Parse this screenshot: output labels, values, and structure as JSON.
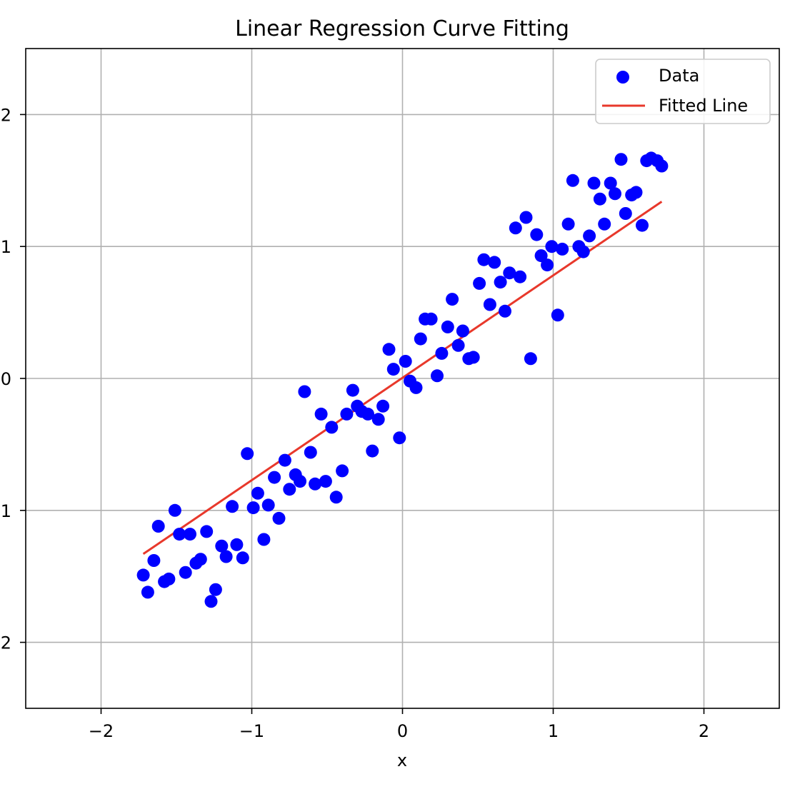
{
  "chart_data": {
    "type": "scatter",
    "title": "Linear Regression Curve Fitting",
    "xlabel": "x",
    "ylabel": "",
    "xlim": [
      -2.5,
      2.5
    ],
    "ylim": [
      -2.5,
      2.5
    ],
    "grid": true,
    "legend_position": "top-right",
    "x_ticks": [
      -2,
      -1,
      0,
      1,
      2
    ],
    "x_tick_labels": [
      "−2",
      "−1",
      "0",
      "1",
      "2"
    ],
    "y_ticks": [
      2,
      1,
      0,
      -1,
      -2
    ],
    "y_tick_labels": [
      "2",
      "1",
      "0",
      "1",
      "2"
    ],
    "series": [
      {
        "name": "Data",
        "kind": "scatter",
        "color": "#0000ff",
        "points": [
          [
            -1.72,
            -1.49
          ],
          [
            -1.69,
            -1.62
          ],
          [
            -1.65,
            -1.38
          ],
          [
            -1.62,
            -1.12
          ],
          [
            -1.58,
            -1.54
          ],
          [
            -1.55,
            -1.52
          ],
          [
            -1.51,
            -1.0
          ],
          [
            -1.48,
            -1.18
          ],
          [
            -1.44,
            -1.47
          ],
          [
            -1.41,
            -1.18
          ],
          [
            -1.37,
            -1.4
          ],
          [
            -1.34,
            -1.37
          ],
          [
            -1.3,
            -1.16
          ],
          [
            -1.27,
            -1.69
          ],
          [
            -1.24,
            -1.6
          ],
          [
            -1.2,
            -1.27
          ],
          [
            -1.17,
            -1.35
          ],
          [
            -1.13,
            -0.97
          ],
          [
            -1.1,
            -1.26
          ],
          [
            -1.06,
            -1.36
          ],
          [
            -1.03,
            -0.57
          ],
          [
            -0.99,
            -0.98
          ],
          [
            -0.96,
            -0.87
          ],
          [
            -0.92,
            -1.22
          ],
          [
            -0.89,
            -0.96
          ],
          [
            -0.85,
            -0.75
          ],
          [
            -0.82,
            -1.06
          ],
          [
            -0.78,
            -0.62
          ],
          [
            -0.75,
            -0.84
          ],
          [
            -0.71,
            -0.73
          ],
          [
            -0.68,
            -0.78
          ],
          [
            -0.65,
            -0.1
          ],
          [
            -0.61,
            -0.56
          ],
          [
            -0.58,
            -0.8
          ],
          [
            -0.54,
            -0.27
          ],
          [
            -0.51,
            -0.78
          ],
          [
            -0.47,
            -0.37
          ],
          [
            -0.44,
            -0.9
          ],
          [
            -0.4,
            -0.7
          ],
          [
            -0.37,
            -0.27
          ],
          [
            -0.33,
            -0.09
          ],
          [
            -0.3,
            -0.21
          ],
          [
            -0.27,
            -0.25
          ],
          [
            -0.23,
            -0.27
          ],
          [
            -0.2,
            -0.55
          ],
          [
            -0.16,
            -0.31
          ],
          [
            -0.13,
            -0.21
          ],
          [
            -0.09,
            0.22
          ],
          [
            -0.06,
            0.07
          ],
          [
            -0.02,
            -0.45
          ],
          [
            0.02,
            0.13
          ],
          [
            0.05,
            -0.02
          ],
          [
            0.09,
            -0.07
          ],
          [
            0.12,
            0.3
          ],
          [
            0.15,
            0.45
          ],
          [
            0.19,
            0.45
          ],
          [
            0.23,
            0.02
          ],
          [
            0.26,
            0.19
          ],
          [
            0.3,
            0.39
          ],
          [
            0.33,
            0.6
          ],
          [
            0.37,
            0.25
          ],
          [
            0.4,
            0.36
          ],
          [
            0.44,
            0.15
          ],
          [
            0.47,
            0.16
          ],
          [
            0.51,
            0.72
          ],
          [
            0.54,
            0.9
          ],
          [
            0.58,
            0.56
          ],
          [
            0.61,
            0.88
          ],
          [
            0.65,
            0.73
          ],
          [
            0.68,
            0.51
          ],
          [
            0.71,
            0.8
          ],
          [
            0.75,
            1.14
          ],
          [
            0.78,
            0.77
          ],
          [
            0.82,
            1.22
          ],
          [
            0.85,
            0.15
          ],
          [
            0.89,
            1.09
          ],
          [
            0.92,
            0.93
          ],
          [
            0.96,
            0.86
          ],
          [
            0.99,
            1.0
          ],
          [
            1.03,
            0.48
          ],
          [
            1.06,
            0.98
          ],
          [
            1.1,
            1.17
          ],
          [
            1.13,
            1.5
          ],
          [
            1.17,
            1.0
          ],
          [
            1.2,
            0.96
          ],
          [
            1.24,
            1.08
          ],
          [
            1.27,
            1.48
          ],
          [
            1.31,
            1.36
          ],
          [
            1.34,
            1.17
          ],
          [
            1.38,
            1.48
          ],
          [
            1.41,
            1.4
          ],
          [
            1.45,
            1.66
          ],
          [
            1.48,
            1.25
          ],
          [
            1.52,
            1.39
          ],
          [
            1.55,
            1.41
          ],
          [
            1.59,
            1.16
          ],
          [
            1.62,
            1.65
          ],
          [
            1.65,
            1.67
          ],
          [
            1.69,
            1.65
          ],
          [
            1.72,
            1.61
          ]
        ]
      },
      {
        "name": "Fitted Line",
        "kind": "line",
        "color": "#e8382b",
        "points": [
          [
            -1.72,
            -1.33
          ],
          [
            1.72,
            1.34
          ]
        ]
      }
    ]
  }
}
